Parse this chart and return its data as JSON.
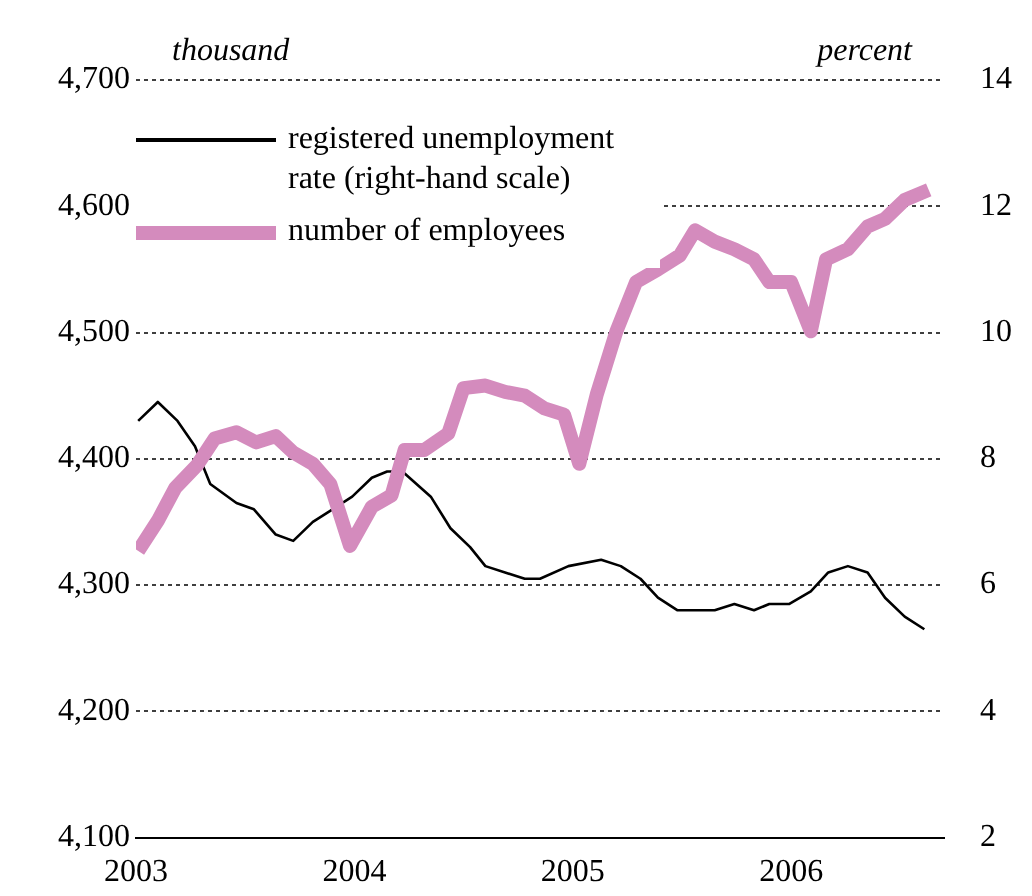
{
  "chart_data": {
    "type": "line",
    "ylabel": "thousand",
    "y2label": "percent",
    "xlim": [
      2003,
      2006.7
    ],
    "xticks": [
      2003,
      2004,
      2005,
      2006
    ],
    "ylim": [
      4100,
      4700
    ],
    "yticks": [
      {
        "value": 4100,
        "label": "4,100"
      },
      {
        "value": 4200,
        "label": "4,200"
      },
      {
        "value": 4300,
        "label": "4,300"
      },
      {
        "value": 4400,
        "label": "4,400"
      },
      {
        "value": 4500,
        "label": "4,500"
      },
      {
        "value": 4600,
        "label": "4,600"
      },
      {
        "value": 4700,
        "label": "4,700"
      }
    ],
    "y2lim": [
      2,
      14
    ],
    "y2ticks": [
      2,
      4,
      6,
      8,
      10,
      12,
      14
    ],
    "grid": "y",
    "legend": "top left",
    "marker": "none",
    "line_style": "solid",
    "series": [
      {
        "name": "registered unemployment rate (right-hand scale)",
        "color": "#000000",
        "axis": "y2",
        "x": [
          2003.01,
          2003.1,
          2003.19,
          2003.27,
          2003.34,
          2003.46,
          2003.54,
          2003.64,
          2003.72,
          2003.81,
          2003.9,
          2003.99,
          2004.08,
          2004.15,
          2004.22,
          2004.35,
          2004.44,
          2004.53,
          2004.6,
          2004.69,
          2004.78,
          2004.85,
          2004.98,
          2005.13,
          2005.22,
          2005.31,
          2005.39,
          2005.48,
          2005.65,
          2005.74,
          2005.83,
          2005.9,
          2005.99,
          2006.09,
          2006.17,
          2006.26,
          2006.35,
          2006.43,
          2006.52,
          2006.61
        ],
        "values": [
          8.6,
          8.9,
          8.6,
          8.2,
          7.6,
          7.3,
          7.2,
          6.8,
          6.7,
          7.0,
          7.2,
          7.4,
          7.7,
          7.8,
          7.8,
          7.4,
          6.9,
          6.6,
          6.3,
          6.2,
          6.1,
          6.1,
          6.3,
          6.4,
          6.3,
          6.1,
          5.8,
          5.6,
          5.6,
          5.7,
          5.6,
          5.7,
          5.7,
          5.9,
          6.2,
          6.3,
          6.2,
          5.8,
          5.5,
          5.3
        ]
      },
      {
        "name": "number of employees",
        "color": "#d48bbd",
        "axis": "y",
        "x": [
          2003.01,
          2003.1,
          2003.18,
          2003.28,
          2003.36,
          2003.46,
          2003.55,
          2003.64,
          2003.72,
          2003.81,
          2003.89,
          2003.98,
          2004.08,
          2004.17,
          2004.23,
          2004.32,
          2004.43,
          2004.5,
          2004.6,
          2004.69,
          2004.78,
          2004.87,
          2004.96,
          2005.03,
          2005.11,
          2005.2,
          2005.29,
          2005.39,
          2005.49,
          2005.56,
          2005.65,
          2005.74,
          2005.83,
          2005.9,
          2006.0,
          2006.09,
          2006.16,
          2006.26,
          2006.35,
          2006.43,
          2006.52,
          2006.63
        ],
        "values": [
          4327,
          4351,
          4377,
          4395,
          4416,
          4421,
          4413,
          4418,
          4405,
          4396,
          4380,
          4331,
          4362,
          4371,
          4407,
          4407,
          4420,
          4456,
          4458,
          4453,
          4450,
          4440,
          4435,
          4396,
          4451,
          4501,
          4540,
          4550,
          4561,
          4581,
          4572,
          4566,
          4558,
          4540,
          4540,
          4501,
          4558,
          4566,
          4584,
          4590,
          4605,
          4613
        ]
      }
    ]
  }
}
